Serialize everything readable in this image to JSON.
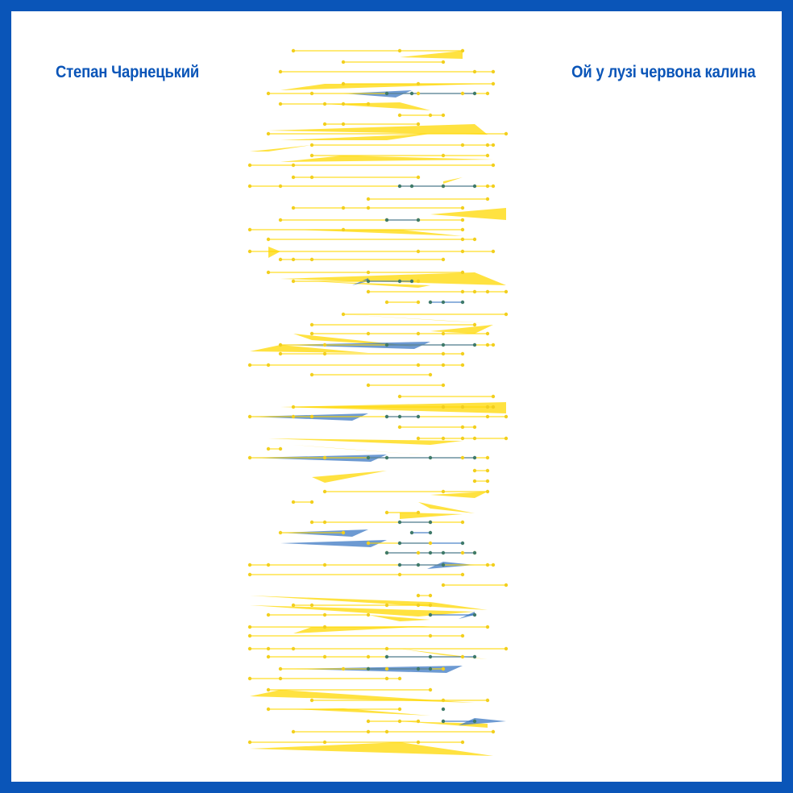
{
  "author": "Степан Чарнецький",
  "song_title": "Ой у лузі червона калина",
  "colors": {
    "frame": "#0a55b8",
    "background": "#ffffff",
    "yellow": "#ffd800",
    "yellow_point": "#f2cf1e",
    "blue": "#2f6fbf",
    "blue_point": "#3f7a6a"
  },
  "graphic": {
    "type": "network-of-filled-triangles",
    "palette": [
      "yellow",
      "blue"
    ],
    "rows": 66
  }
}
